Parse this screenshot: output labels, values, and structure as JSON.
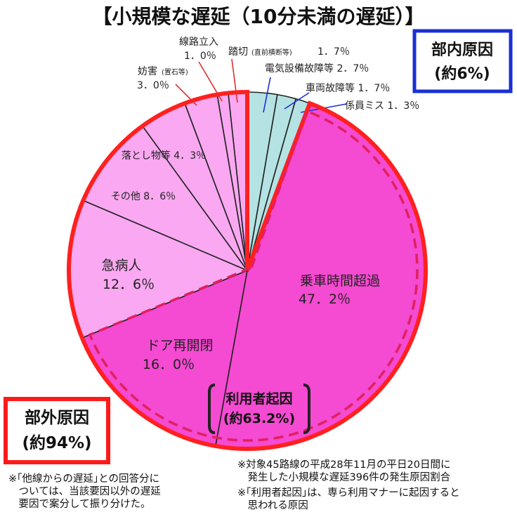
{
  "chart_data": {
    "type": "pie",
    "title": "【小規模な遅延（10分未満の遅延）】",
    "slices": [
      {
        "label": "乗車時間超過",
        "value": 47.2,
        "display": "47.2%",
        "color": "#f54ad2",
        "group": "external"
      },
      {
        "label": "ドア再開閉",
        "value": 16.0,
        "display": "16.0%",
        "color": "#f54ad2",
        "group": "external"
      },
      {
        "label": "急病人",
        "value": 12.6,
        "display": "12.6%",
        "color": "#f9a8f1",
        "group": "external"
      },
      {
        "label": "その他",
        "value": 8.6,
        "display": "8.6%",
        "color": "#f9a8f1",
        "group": "external"
      },
      {
        "label": "落とし物等",
        "value": 4.3,
        "display": "4.3%",
        "color": "#f9a8f1",
        "group": "external"
      },
      {
        "label": "妨害(置石等)",
        "value": 3.0,
        "display": "3.0%",
        "color": "#f9a8f1",
        "group": "external"
      },
      {
        "label": "線路立入",
        "value": 1.0,
        "display": "1.0%",
        "color": "#f9a8f1",
        "group": "external"
      },
      {
        "label": "踏切(直前横断等)",
        "value": 1.7,
        "display": "1.7%",
        "color": "#f9a8f1",
        "group": "external"
      },
      {
        "label": "電気設備故障等",
        "value": 2.7,
        "display": "2.7%",
        "color": "#b5e2e2",
        "group": "internal"
      },
      {
        "label": "車両故障等",
        "value": 1.7,
        "display": "1.7%",
        "color": "#b5e2e2",
        "group": "internal"
      },
      {
        "label": "係員ミス",
        "value": 1.3,
        "display": "1.3%",
        "color": "#b5e2e2",
        "group": "internal"
      }
    ],
    "annotations": {
      "internal": {
        "line1": "部内原因",
        "line2": "(約6%)"
      },
      "external": {
        "line1": "部外原因",
        "line2": "(約94%)"
      },
      "user_caused": {
        "line1": "利用者起因",
        "line2": "(約63.2%)"
      }
    }
  },
  "labels": {
    "joshajikan_name": "乗車時間超過",
    "joshajikan_val": "47．2％",
    "door_name": "ドア再開閉",
    "door_val": "16．0％",
    "kyubyo_name": "急病人",
    "kyubyo_val": "12．6％",
    "sonota": "その他 8．6％",
    "otoshimono": "落とし物等 4．3％",
    "bogai_name": "妨害",
    "bogai_small": "(置石等)",
    "bogai_val": "3．0％",
    "senro_name": "線路立入",
    "senro_val": "1．0％",
    "fumikiri_name": "踏切",
    "fumikiri_small": "(直前横断等)",
    "fumikiri_val": "1．7％",
    "denki": "電気設備故障等 2．7％",
    "sharyo": "車両故障等 1．7％",
    "kakariin": "係員ミス 1．3％"
  },
  "notes": {
    "left": "※｢他線からの遅延｣との回答分に\n　ついては、当該要因以外の遅延\n　要因で案分して振り分けた。",
    "right1": "※対象45路線の平成28年11月の平日20日間に\n　発生した小規模な遅延396件の発生原因割合",
    "right2": "※｢利用者起因｣は、専ら利用マナーに起因すると\n　思われる原因"
  }
}
